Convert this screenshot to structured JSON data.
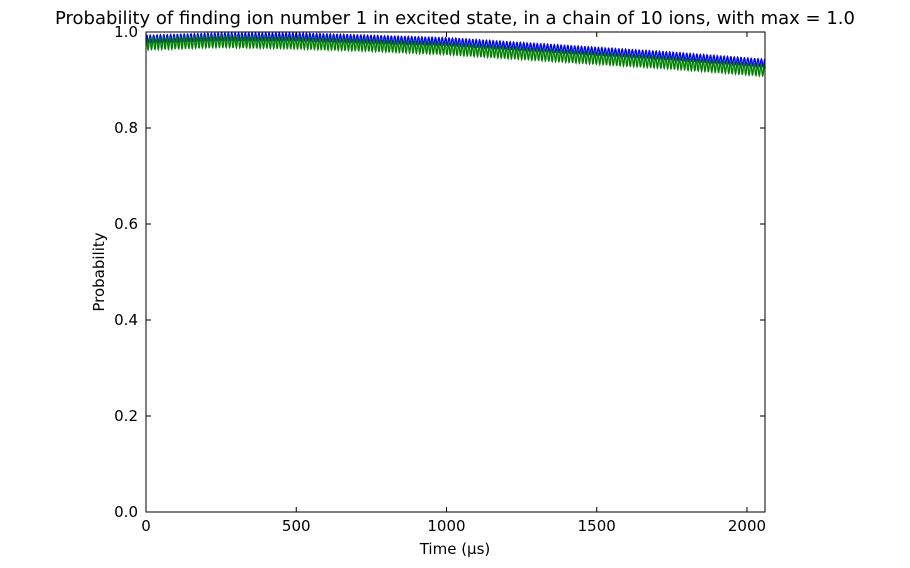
{
  "chart_data": {
    "type": "line",
    "title": "Probability of finding ion number 1 in excited state, in a chain of 10 ions, with max = 1.0",
    "xlabel": "Time (μs)",
    "ylabel": "Probability",
    "xlim": [
      0,
      2060
    ],
    "ylim": [
      0.0,
      1.0
    ],
    "xticks": [
      0,
      500,
      1000,
      1500,
      2000
    ],
    "yticks": [
      0.0,
      0.2,
      0.4,
      0.6,
      0.8,
      1.0
    ],
    "xtick_labels": [
      "0",
      "500",
      "1000",
      "1500",
      "2000"
    ],
    "ytick_labels": [
      "0.0",
      "0.2",
      "0.4",
      "0.6",
      "0.8",
      "1.0"
    ],
    "grid": false,
    "series": [
      {
        "color": "#0000ff",
        "x": [
          0,
          250,
          500,
          750,
          1000,
          1250,
          1500,
          1750,
          2060
        ],
        "y": [
          0.985,
          0.99,
          0.99,
          0.985,
          0.98,
          0.97,
          0.96,
          0.95,
          0.935
        ],
        "oscillation_amplitude": 0.008
      },
      {
        "color": "#008000",
        "x": [
          0,
          250,
          500,
          750,
          1000,
          1250,
          1500,
          1750,
          2060
        ],
        "y": [
          0.975,
          0.98,
          0.977,
          0.972,
          0.965,
          0.955,
          0.945,
          0.935,
          0.92
        ],
        "oscillation_amplitude": 0.012
      }
    ]
  }
}
